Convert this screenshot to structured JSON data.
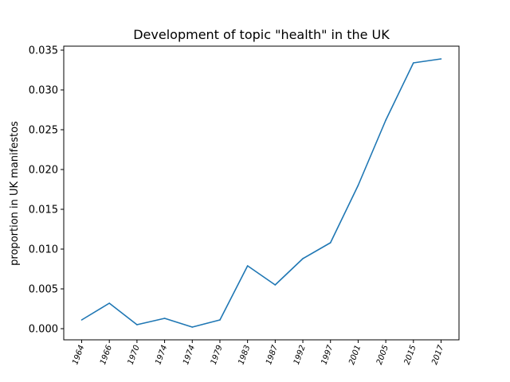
{
  "chart_data": {
    "type": "line",
    "title": "Development of topic \"health\" in the UK",
    "xlabel": "",
    "ylabel": "proportion in UK manifestos",
    "categories": [
      "1964",
      "1966",
      "1970",
      "1974",
      "1974",
      "1979",
      "1983",
      "1987",
      "1992",
      "1997",
      "2001",
      "2005",
      "2015",
      "2017"
    ],
    "series": [
      {
        "values": [
          0.0011,
          0.0032,
          0.0005,
          0.0013,
          0.0002,
          0.0011,
          0.0079,
          0.0055,
          0.0088,
          0.0108,
          0.018,
          0.0262,
          0.0334,
          0.0339
        ]
      }
    ],
    "ylim": [
      -0.0014,
      0.0355
    ],
    "yticks": [
      "0.000",
      "0.005",
      "0.010",
      "0.015",
      "0.020",
      "0.025",
      "0.030",
      "0.035"
    ],
    "ytick_values": [
      0.0,
      0.005,
      0.01,
      0.015,
      0.02,
      0.025,
      0.03,
      0.035
    ],
    "grid": false,
    "line_color": "#1f77b4"
  }
}
